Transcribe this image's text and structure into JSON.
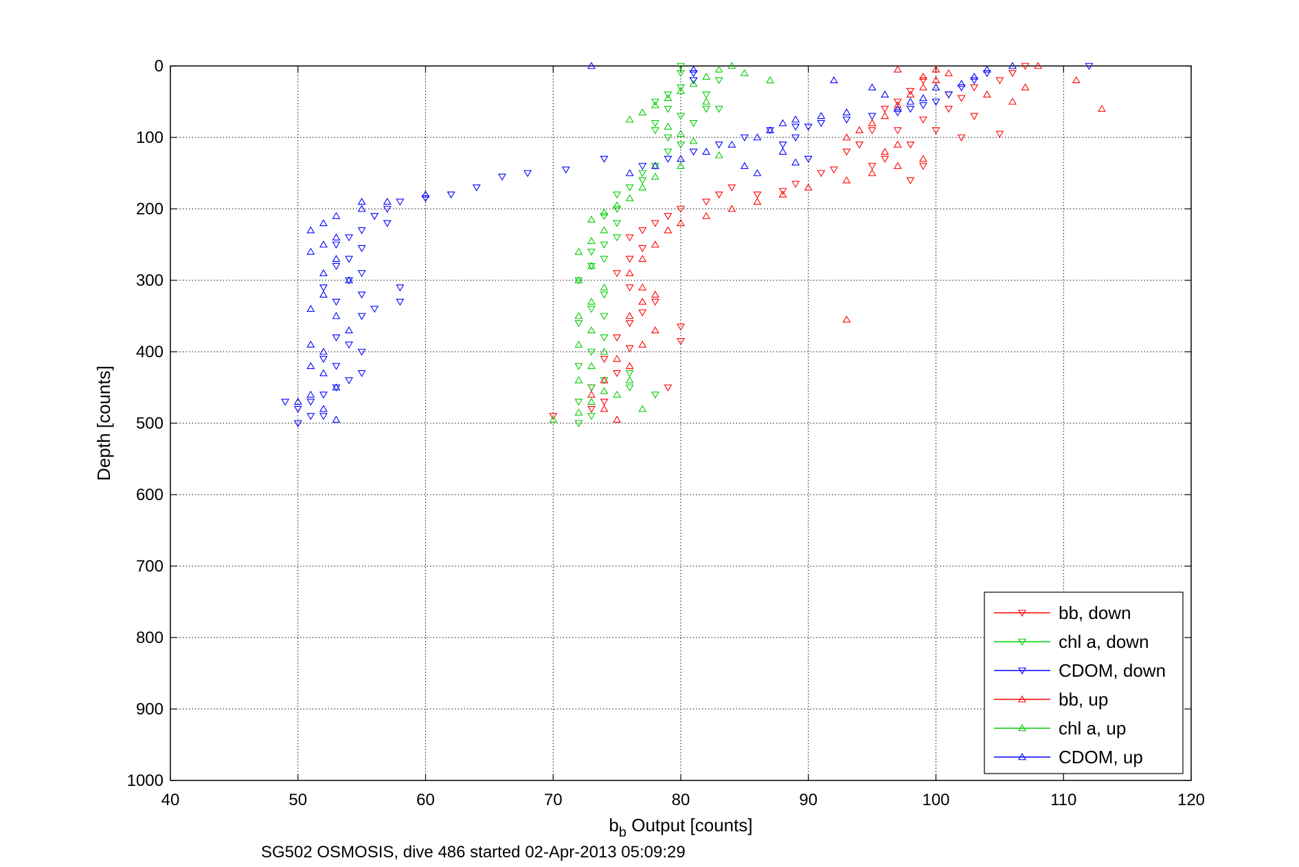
{
  "chart_data": {
    "type": "scatter",
    "title": "",
    "xlabel_main": "b",
    "xlabel_sub": "b",
    "xlabel_rest": " Output [counts]",
    "ylabel": "Depth [counts]",
    "caption": "SG502 OSMOSIS, dive 486 started 02-Apr-2013 05:09:29",
    "xlim": [
      40,
      120
    ],
    "ylim": [
      0,
      1000
    ],
    "y_reversed": true,
    "grid": true,
    "legend_position": "bottom-right",
    "x_ticks": [
      "40",
      "50",
      "60",
      "70",
      "80",
      "90",
      "100",
      "110",
      "120"
    ],
    "y_ticks": [
      "0",
      "100",
      "200",
      "300",
      "400",
      "500",
      "600",
      "700",
      "800",
      "900",
      "1000"
    ],
    "series": [
      {
        "name": "bb, down",
        "color": "#ff0000",
        "marker": "triangle-down",
        "points": [
          [
            107,
            0
          ],
          [
            106,
            10
          ],
          [
            105,
            20
          ],
          [
            103,
            30
          ],
          [
            102,
            45
          ],
          [
            101,
            60
          ],
          [
            103,
            70
          ],
          [
            100,
            90
          ],
          [
            102,
            100
          ],
          [
            105,
            95
          ],
          [
            101,
            40
          ],
          [
            99,
            20
          ],
          [
            98,
            35
          ],
          [
            97,
            50
          ],
          [
            96,
            60
          ],
          [
            99,
            75
          ],
          [
            97,
            90
          ],
          [
            98,
            110
          ],
          [
            96,
            130
          ],
          [
            99,
            140
          ],
          [
            98,
            160
          ],
          [
            95,
            90
          ],
          [
            94,
            110
          ],
          [
            93,
            120
          ],
          [
            95,
            140
          ],
          [
            92,
            145
          ],
          [
            91,
            150
          ],
          [
            89,
            165
          ],
          [
            88,
            175
          ],
          [
            86,
            180
          ],
          [
            84,
            170
          ],
          [
            83,
            180
          ],
          [
            82,
            190
          ],
          [
            80,
            200
          ],
          [
            79,
            210
          ],
          [
            78,
            220
          ],
          [
            77,
            230
          ],
          [
            76,
            240
          ],
          [
            77,
            255
          ],
          [
            76,
            270
          ],
          [
            75,
            290
          ],
          [
            76,
            310
          ],
          [
            78,
            330
          ],
          [
            77,
            345
          ],
          [
            76,
            360
          ],
          [
            75,
            380
          ],
          [
            76,
            395
          ],
          [
            74,
            410
          ],
          [
            75,
            430
          ],
          [
            73,
            450
          ],
          [
            74,
            470
          ],
          [
            73,
            480
          ],
          [
            80,
            385
          ],
          [
            80,
            365
          ],
          [
            79,
            450
          ],
          [
            70,
            490
          ]
        ]
      },
      {
        "name": "chl a, down",
        "color": "#00cc00",
        "marker": "triangle-down",
        "points": [
          [
            80,
            0
          ],
          [
            80,
            10
          ],
          [
            81,
            20
          ],
          [
            80,
            30
          ],
          [
            79,
            40
          ],
          [
            78,
            50
          ],
          [
            79,
            60
          ],
          [
            80,
            70
          ],
          [
            78,
            80
          ],
          [
            78,
            90
          ],
          [
            79,
            100
          ],
          [
            80,
            110
          ],
          [
            79,
            120
          ],
          [
            78,
            140
          ],
          [
            77,
            150
          ],
          [
            77,
            160
          ],
          [
            76,
            170
          ],
          [
            75,
            180
          ],
          [
            75,
            200
          ],
          [
            74,
            210
          ],
          [
            75,
            220
          ],
          [
            75,
            240
          ],
          [
            74,
            250
          ],
          [
            73,
            260
          ],
          [
            74,
            270
          ],
          [
            73,
            280
          ],
          [
            72,
            300
          ],
          [
            74,
            320
          ],
          [
            73,
            340
          ],
          [
            74,
            350
          ],
          [
            72,
            360
          ],
          [
            74,
            380
          ],
          [
            73,
            400
          ],
          [
            72,
            420
          ],
          [
            74,
            440
          ],
          [
            73,
            450
          ],
          [
            72,
            470
          ],
          [
            73,
            490
          ],
          [
            72,
            500
          ],
          [
            76,
            450
          ],
          [
            78,
            460
          ],
          [
            76,
            430
          ],
          [
            83,
            20
          ],
          [
            82,
            40
          ],
          [
            82,
            60
          ],
          [
            81,
            80
          ],
          [
            83,
            60
          ]
        ]
      },
      {
        "name": "CDOM, down",
        "color": "#0000ff",
        "marker": "triangle-down",
        "points": [
          [
            112,
            0
          ],
          [
            104,
            10
          ],
          [
            103,
            20
          ],
          [
            102,
            30
          ],
          [
            101,
            40
          ],
          [
            100,
            50
          ],
          [
            99,
            55
          ],
          [
            98,
            60
          ],
          [
            97,
            65
          ],
          [
            95,
            70
          ],
          [
            93,
            75
          ],
          [
            91,
            80
          ],
          [
            89,
            85
          ],
          [
            87,
            90
          ],
          [
            85,
            100
          ],
          [
            83,
            110
          ],
          [
            81,
            120
          ],
          [
            79,
            130
          ],
          [
            77,
            140
          ],
          [
            74,
            130
          ],
          [
            71,
            145
          ],
          [
            68,
            150
          ],
          [
            66,
            155
          ],
          [
            64,
            170
          ],
          [
            62,
            180
          ],
          [
            60,
            185
          ],
          [
            58,
            190
          ],
          [
            57,
            200
          ],
          [
            56,
            210
          ],
          [
            57,
            220
          ],
          [
            55,
            230
          ],
          [
            54,
            240
          ],
          [
            53,
            250
          ],
          [
            55,
            255
          ],
          [
            54,
            270
          ],
          [
            53,
            280
          ],
          [
            55,
            290
          ],
          [
            54,
            300
          ],
          [
            52,
            310
          ],
          [
            55,
            320
          ],
          [
            53,
            330
          ],
          [
            58,
            310
          ],
          [
            58,
            330
          ],
          [
            56,
            340
          ],
          [
            55,
            350
          ],
          [
            53,
            380
          ],
          [
            54,
            390
          ],
          [
            55,
            400
          ],
          [
            52,
            410
          ],
          [
            53,
            420
          ],
          [
            55,
            430
          ],
          [
            54,
            440
          ],
          [
            53,
            450
          ],
          [
            52,
            460
          ],
          [
            51,
            470
          ],
          [
            49,
            470
          ],
          [
            50,
            480
          ],
          [
            51,
            490
          ],
          [
            52,
            490
          ],
          [
            50,
            500
          ],
          [
            81,
            20
          ],
          [
            81,
            10
          ],
          [
            90,
            130
          ],
          [
            88,
            110
          ],
          [
            89,
            100
          ],
          [
            90,
            85
          ]
        ]
      },
      {
        "name": "bb, up",
        "color": "#ff0000",
        "marker": "triangle-up",
        "points": [
          [
            108,
            0
          ],
          [
            107,
            30
          ],
          [
            104,
            40
          ],
          [
            106,
            50
          ],
          [
            111,
            20
          ],
          [
            113,
            60
          ],
          [
            101,
            10
          ],
          [
            100,
            20
          ],
          [
            99,
            30
          ],
          [
            98,
            40
          ],
          [
            97,
            55
          ],
          [
            96,
            70
          ],
          [
            95,
            80
          ],
          [
            94,
            90
          ],
          [
            93,
            100
          ],
          [
            97,
            110
          ],
          [
            96,
            120
          ],
          [
            99,
            130
          ],
          [
            97,
            140
          ],
          [
            95,
            150
          ],
          [
            93,
            160
          ],
          [
            90,
            170
          ],
          [
            88,
            180
          ],
          [
            86,
            190
          ],
          [
            84,
            200
          ],
          [
            82,
            210
          ],
          [
            80,
            220
          ],
          [
            79,
            230
          ],
          [
            78,
            250
          ],
          [
            77,
            270
          ],
          [
            76,
            290
          ],
          [
            77,
            310
          ],
          [
            78,
            320
          ],
          [
            77,
            330
          ],
          [
            76,
            350
          ],
          [
            78,
            370
          ],
          [
            77,
            390
          ],
          [
            75,
            410
          ],
          [
            76,
            420
          ],
          [
            74,
            440
          ],
          [
            73,
            460
          ],
          [
            74,
            480
          ],
          [
            75,
            495
          ],
          [
            93,
            355
          ],
          [
            99,
            15
          ],
          [
            100,
            5
          ],
          [
            97,
            5
          ]
        ]
      },
      {
        "name": "chl a, up",
        "color": "#00cc00",
        "marker": "triangle-up",
        "points": [
          [
            84,
            0
          ],
          [
            85,
            10
          ],
          [
            87,
            20
          ],
          [
            82,
            15
          ],
          [
            81,
            25
          ],
          [
            80,
            35
          ],
          [
            79,
            45
          ],
          [
            78,
            55
          ],
          [
            77,
            65
          ],
          [
            76,
            75
          ],
          [
            79,
            85
          ],
          [
            80,
            95
          ],
          [
            81,
            105
          ],
          [
            83,
            125
          ],
          [
            80,
            140
          ],
          [
            78,
            155
          ],
          [
            77,
            170
          ],
          [
            76,
            185
          ],
          [
            75,
            195
          ],
          [
            74,
            205
          ],
          [
            73,
            215
          ],
          [
            74,
            230
          ],
          [
            73,
            245
          ],
          [
            72,
            260
          ],
          [
            73,
            280
          ],
          [
            72,
            300
          ],
          [
            74,
            310
          ],
          [
            73,
            330
          ],
          [
            72,
            350
          ],
          [
            73,
            370
          ],
          [
            72,
            390
          ],
          [
            74,
            400
          ],
          [
            73,
            420
          ],
          [
            72,
            440
          ],
          [
            74,
            455
          ],
          [
            73,
            470
          ],
          [
            72,
            485
          ],
          [
            70,
            495
          ],
          [
            75,
            460
          ],
          [
            76,
            440
          ],
          [
            77,
            480
          ],
          [
            83,
            5
          ],
          [
            82,
            50
          ]
        ]
      },
      {
        "name": "CDOM, up",
        "color": "#0000ff",
        "marker": "triangle-up",
        "points": [
          [
            73,
            0
          ],
          [
            81,
            5
          ],
          [
            92,
            20
          ],
          [
            95,
            30
          ],
          [
            96,
            40
          ],
          [
            99,
            45
          ],
          [
            100,
            30
          ],
          [
            102,
            25
          ],
          [
            103,
            15
          ],
          [
            104,
            5
          ],
          [
            106,
            0
          ],
          [
            98,
            50
          ],
          [
            97,
            60
          ],
          [
            93,
            65
          ],
          [
            91,
            70
          ],
          [
            89,
            75
          ],
          [
            88,
            80
          ],
          [
            87,
            90
          ],
          [
            86,
            100
          ],
          [
            84,
            110
          ],
          [
            82,
            120
          ],
          [
            80,
            130
          ],
          [
            78,
            140
          ],
          [
            76,
            150
          ],
          [
            85,
            140
          ],
          [
            86,
            150
          ],
          [
            89,
            135
          ],
          [
            88,
            120
          ],
          [
            57,
            190
          ],
          [
            55,
            200
          ],
          [
            53,
            210
          ],
          [
            52,
            220
          ],
          [
            51,
            230
          ],
          [
            53,
            240
          ],
          [
            52,
            250
          ],
          [
            51,
            260
          ],
          [
            53,
            270
          ],
          [
            52,
            290
          ],
          [
            54,
            300
          ],
          [
            52,
            320
          ],
          [
            51,
            340
          ],
          [
            53,
            350
          ],
          [
            54,
            370
          ],
          [
            51,
            390
          ],
          [
            52,
            400
          ],
          [
            51,
            420
          ],
          [
            52,
            430
          ],
          [
            53,
            450
          ],
          [
            51,
            460
          ],
          [
            50,
            470
          ],
          [
            52,
            480
          ],
          [
            53,
            495
          ],
          [
            60,
            180
          ],
          [
            55,
            190
          ]
        ]
      }
    ]
  }
}
